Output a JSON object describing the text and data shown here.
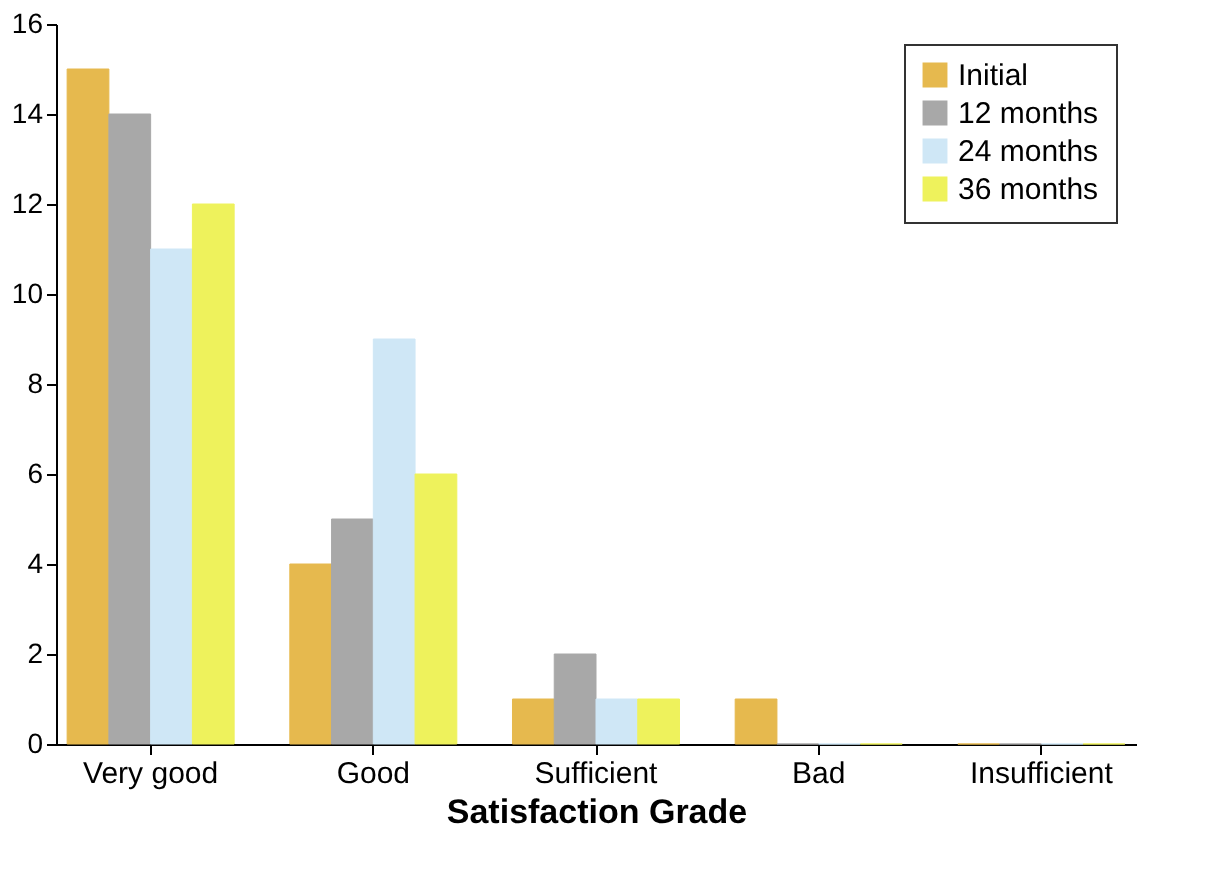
{
  "chart_data": {
    "type": "bar",
    "xlabel": "Satisfaction Grade",
    "categories": [
      "Very good",
      "Good",
      "Sufficient",
      "Bad",
      "Insufficient"
    ],
    "series": [
      {
        "name": "Initial",
        "color": "#e6b94e",
        "values": [
          15,
          4,
          1,
          1,
          0
        ]
      },
      {
        "name": "12 months",
        "color": "#a8a8a8",
        "values": [
          14,
          5,
          2,
          0,
          0
        ]
      },
      {
        "name": "24 months",
        "color": "#cfe7f6",
        "values": [
          11,
          9,
          1,
          0,
          0
        ]
      },
      {
        "name": "36 months",
        "color": "#eef25c",
        "values": [
          12,
          6,
          1,
          0,
          0
        ]
      }
    ],
    "ylim": [
      0,
      16
    ],
    "yticks": [
      0,
      2,
      4,
      6,
      8,
      10,
      12,
      14,
      16
    ],
    "grid": false,
    "legend": "top right"
  }
}
